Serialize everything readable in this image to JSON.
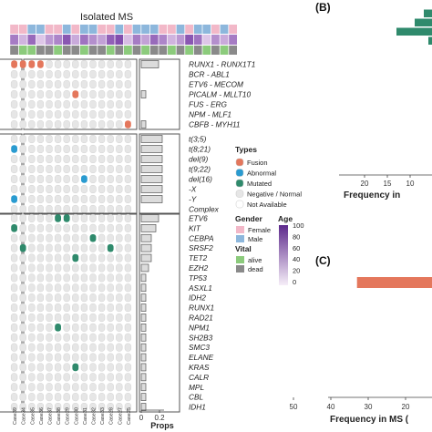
{
  "chart_data": [
    {
      "type": "heatmap",
      "title": "Isolated MS",
      "xlabel_props": "Props",
      "props_axis": {
        "ticks": [
          "0",
          "0.2"
        ],
        "range": [
          0,
          0.25
        ]
      },
      "cases": [
        "Case39",
        "Case34",
        "Case35",
        "Case36",
        "Case37",
        "Case38",
        "Case29",
        "Case30",
        "Case31",
        "Case32",
        "Case33",
        "Case28",
        "Case27",
        "Case25",
        "Case26",
        "Case18",
        "Case16",
        "Case15",
        "Case14",
        "Case13",
        "Case12",
        "Case11",
        "Case10",
        "Case09",
        "Case08",
        "Case07"
      ],
      "blocks": [
        {
          "name": "fusions",
          "genes": [
            "RUNX1 - RUNX1T1",
            "BCR - ABL1",
            "ETV6 - MECOM",
            "PICALM - MLLT10",
            "FUS - ERG",
            "NPM - MLF1",
            "CBFB - MYH11"
          ],
          "props": [
            0.19,
            0,
            0,
            0.05,
            0,
            0,
            0.05
          ],
          "events": [
            {
              "gene": "RUNX1 - RUNX1T1",
              "col": 0,
              "type": "Fusion"
            },
            {
              "gene": "RUNX1 - RUNX1T1",
              "col": 1,
              "type": "Fusion"
            },
            {
              "gene": "RUNX1 - RUNX1T1",
              "col": 2,
              "type": "Fusion"
            },
            {
              "gene": "RUNX1 - RUNX1T1",
              "col": 3,
              "type": "Fusion"
            },
            {
              "gene": "PICALM - MLLT10",
              "col": 7,
              "type": "Fusion"
            },
            {
              "gene": "CBFB - MYH11",
              "col": 13,
              "type": "Fusion"
            }
          ]
        },
        {
          "name": "karyotype",
          "genes": [
            "t(3;5)",
            "t(8;21)",
            "del(9)",
            "t(9;22)",
            "del(16)",
            "-X",
            "-Y",
            "Complex"
          ],
          "props": [
            0.23,
            0.23,
            0.23,
            0.23,
            0.23,
            0.23,
            0.23,
            0
          ],
          "events": [
            {
              "gene": "t(8;21)",
              "col": 0,
              "type": "Abnormal"
            },
            {
              "gene": "del(16)",
              "col": 8,
              "type": "Abnormal"
            },
            {
              "gene": "-Y",
              "col": 0,
              "type": "Abnormal"
            }
          ]
        },
        {
          "name": "mutations",
          "genes": [
            "ETV6",
            "KIT",
            "CEBPA",
            "SRSF2",
            "TET2",
            "EZH2",
            "TP53",
            "ASXL1",
            "IDH2",
            "RUNX1",
            "RAD21",
            "NPM1",
            "SH2B3",
            "SMC3",
            "ELANE",
            "KRAS",
            "CALR",
            "MPL",
            "CBL",
            "IDH1"
          ],
          "props": [
            0.19,
            0.16,
            0.11,
            0.11,
            0.11,
            0.08,
            0.05,
            0.05,
            0.05,
            0.05,
            0.05,
            0.05,
            0.05,
            0.05,
            0.05,
            0.05,
            0.05,
            0.05,
            0.05,
            0.05
          ],
          "events": [
            {
              "gene": "ETV6",
              "col": 5,
              "type": "Mutated"
            },
            {
              "gene": "ETV6",
              "col": 6,
              "type": "Mutated"
            },
            {
              "gene": "KIT",
              "col": 0,
              "type": "Mutated"
            },
            {
              "gene": "CEBPA",
              "col": 9,
              "type": "Mutated"
            },
            {
              "gene": "SRSF2",
              "col": 1,
              "type": "Mutated"
            },
            {
              "gene": "SRSF2",
              "col": 11,
              "type": "Mutated"
            },
            {
              "gene": "TET2",
              "col": 7,
              "type": "Mutated"
            },
            {
              "gene": "EZH2",
              "col": 14,
              "type": "Mutated"
            },
            {
              "gene": "NPM1",
              "col": 5,
              "type": "Mutated"
            },
            {
              "gene": "KRAS",
              "col": 7,
              "type": "Mutated"
            }
          ]
        }
      ],
      "row_labels": {
        "fusions": [
          "RUNX1 - RUNX1T1",
          "BCR - ABL1",
          "ETV6 - MECOM",
          "PICALM - MLLT10",
          "FUS - ERG",
          "NPM - MLF1",
          "CBFB - MYH11"
        ],
        "karyotype": [
          "t(3;5)",
          "t(8;21)",
          "del(9)",
          "t(9;22)",
          "del(16)",
          "-X",
          "-Y",
          "Complex"
        ],
        "mutations": [
          "ETV6",
          "KIT",
          "CEBPA",
          "SRSF2",
          "TET2",
          "EZH2",
          "TP53",
          "ASXL1",
          "IDH2",
          "RUNX1",
          "RAD21",
          "NPM1",
          "SH2B3",
          "SMC3",
          "ELANE",
          "KRAS",
          "CALR",
          "MPL",
          "CBL",
          "IDH1"
        ]
      },
      "legend": {
        "types_title": "Types",
        "types": [
          {
            "label": "Fusion",
            "color": "#e4775c"
          },
          {
            "label": "Abnormal",
            "color": "#2a9bd0"
          },
          {
            "label": "Mutated",
            "color": "#2f8a6c"
          },
          {
            "label": "Negative / Normal",
            "color": "#e6e6e6"
          },
          {
            "label": "Not Available",
            "color": "#ffffff"
          }
        ],
        "gender_title": "Gender",
        "gender": [
          {
            "label": "Female",
            "color": "#f2b8c8"
          },
          {
            "label": "Male",
            "color": "#8db7dc"
          }
        ],
        "vital_title": "Vital",
        "vital": [
          {
            "label": "alive",
            "color": "#8ccb7c"
          },
          {
            "label": "dead",
            "color": "#8a8a8a"
          }
        ],
        "age_title": "Age",
        "age_ticks": [
          "100",
          "80",
          "60",
          "40",
          "20",
          "0"
        ]
      },
      "annotations": {
        "gender": [
          "F",
          "F",
          "M",
          "M",
          "F",
          "F",
          "M",
          "F",
          "M",
          "M",
          "F",
          "F",
          "M",
          "F",
          "M",
          "M",
          "M",
          "F",
          "F",
          "M",
          "F",
          "M",
          "M",
          "F",
          "M",
          "F"
        ],
        "age": [
          60,
          30,
          70,
          20,
          45,
          55,
          80,
          35,
          65,
          50,
          40,
          75,
          85,
          25,
          60,
          40,
          70,
          55,
          30,
          45,
          80,
          65,
          20,
          50,
          35,
          60
        ],
        "vital": [
          "D",
          "A",
          "A",
          "D",
          "D",
          "A",
          "D",
          "D",
          "A",
          "D",
          "D",
          "A",
          "D",
          "A",
          "D",
          "A",
          "D",
          "D",
          "A",
          "D",
          "A",
          "D",
          "A",
          "D",
          "A",
          "D"
        ]
      }
    },
    {
      "type": "bar",
      "panel_label": "(B)",
      "orientation": "horizontal",
      "xlabel": "Frequency in",
      "x_ticks": [
        "20",
        "15",
        "10"
      ],
      "values": [
        7,
        9,
        13,
        6,
        5
      ],
      "color": "#2f8a6c"
    },
    {
      "type": "bar",
      "panel_label": "(C)",
      "orientation": "horizontal",
      "xlabel": "Frequency in MS (",
      "x_ticks": [
        "50",
        "40",
        "30",
        "20",
        "10"
      ],
      "values": [
        33
      ],
      "color": "#e4775c"
    }
  ]
}
